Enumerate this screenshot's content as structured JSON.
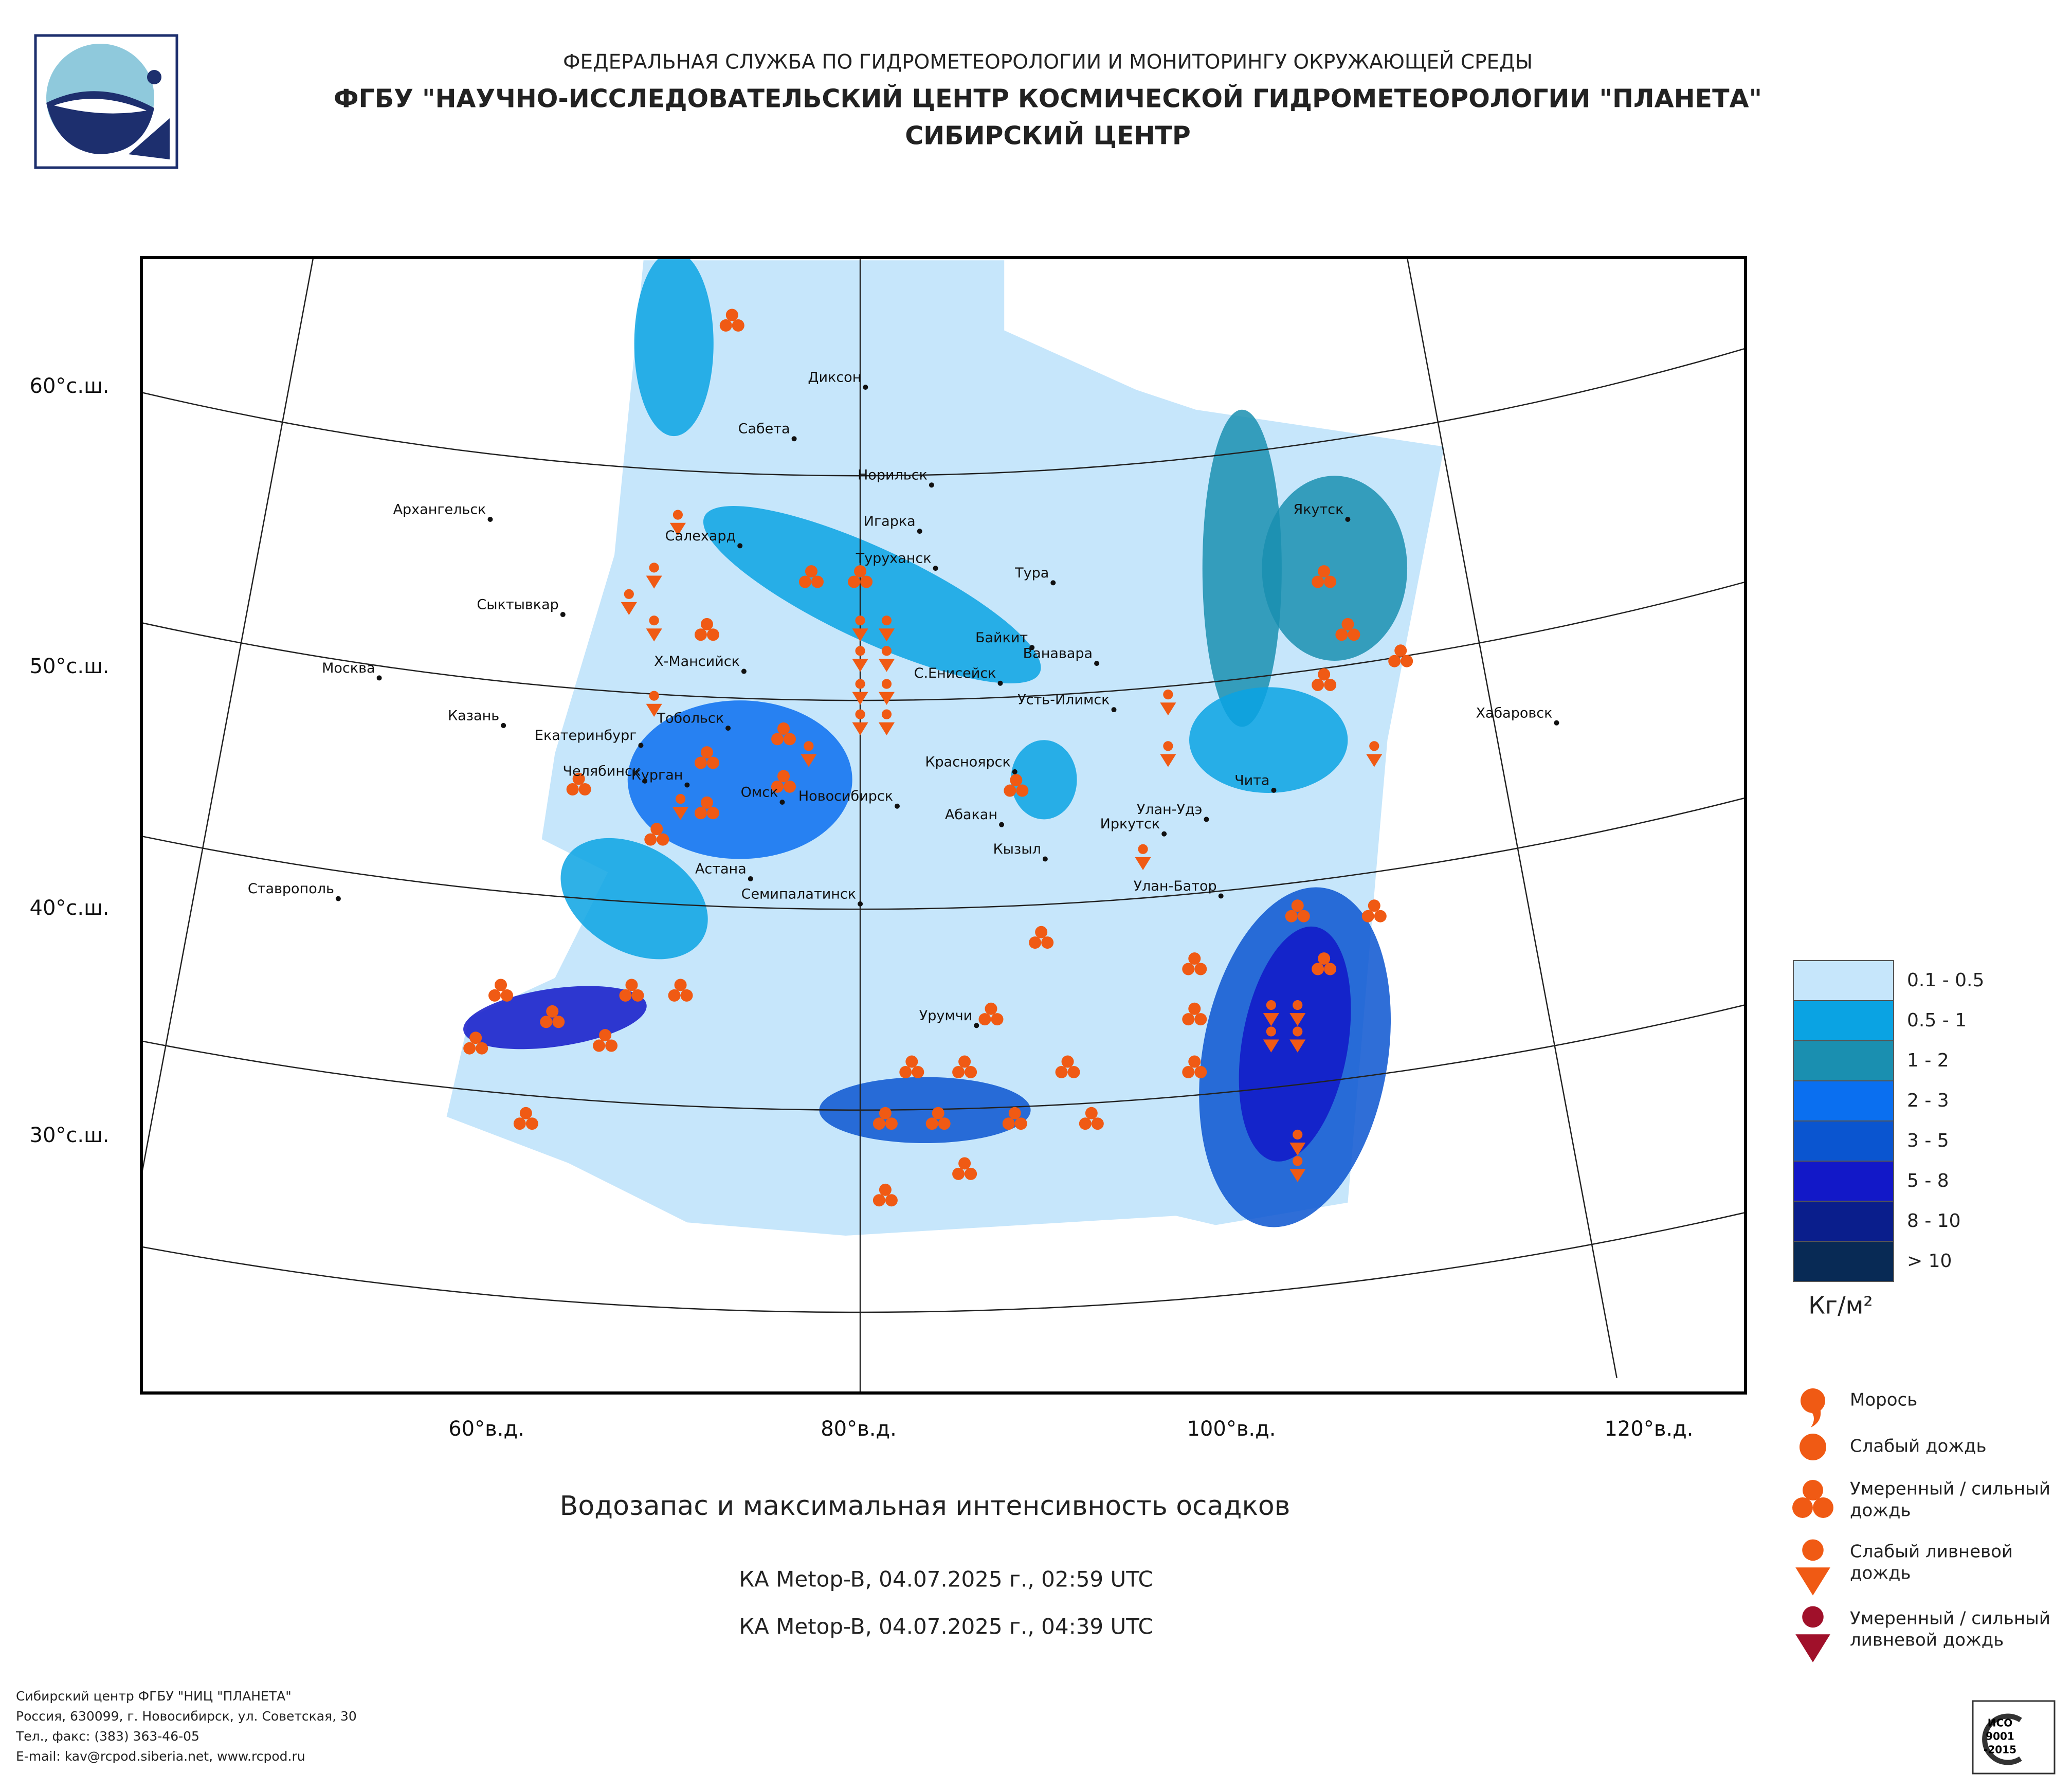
{
  "header": {
    "line1": "ФЕДЕРАЛЬНАЯ СЛУЖБА ПО ГИДРОМЕТЕОРОЛОГИИ И МОНИТОРИНГУ ОКРУЖАЮЩЕЙ СРЕДЫ",
    "line2": "ФГБУ \"НАУЧНО-ИССЛЕДОВАТЕЛЬСКИЙ ЦЕНТР КОСМИЧЕСКОЙ ГИДРОМЕТЕОРОЛОГИИ \"ПЛАНЕТА\"",
    "line3": "СИБИРСКИЙ ЦЕНТР"
  },
  "map": {
    "lat_labels": [
      "60°с.ш.",
      "50°с.ш.",
      "40°с.ш.",
      "30°с.ш."
    ],
    "lon_labels": [
      "60°в.д.",
      "80°в.д.",
      "100°в.д.",
      "120°в.д."
    ],
    "cities": [
      "Диксон",
      "Сабета",
      "Норильск",
      "Игарка",
      "Архангельск",
      "Салехард",
      "Туруханск",
      "Тура",
      "Сыктывкар",
      "Байкит",
      "Ванавара",
      "Якутск",
      "Москва",
      "Х-Мансийск",
      "С.Енисейск",
      "Усть-Илимск",
      "Хабаровск",
      "Казань",
      "Тобольск",
      "Екатеринбург",
      "Челябинск",
      "Курган",
      "Омск",
      "Новосибирск",
      "Красноярск",
      "Чита",
      "Абакан",
      "Улан-Удэ",
      "Иркутск",
      "Кызыл",
      "Астана",
      "Семипалатинск",
      "Улан-Батор",
      "Ставрополь",
      "Урумчи"
    ]
  },
  "legend": {
    "ranges": [
      {
        "label": "0.1 - 0.5",
        "color": "#c6e6fb"
      },
      {
        "label": "0.5 - 1",
        "color": "#0aa3e3"
      },
      {
        "label": "1 - 2",
        "color": "#1a8fb0"
      },
      {
        "label": "2 - 3",
        "color": "#0a6ff0"
      },
      {
        "label": "3 - 5",
        "color": "#0a55d0"
      },
      {
        "label": "5 - 8",
        "color": "#1218c8"
      },
      {
        "label": "8 - 10",
        "color": "#0a1e8c"
      },
      {
        "label": "> 10",
        "color": "#082a55"
      }
    ],
    "unit": "Кг/м²",
    "precipitation": [
      {
        "lines": [
          "Морось"
        ]
      },
      {
        "lines": [
          "Слабый дождь"
        ]
      },
      {
        "lines": [
          "Умеренный / сильный",
          "дождь"
        ]
      },
      {
        "lines": [
          "Слабый ливневой",
          "дождь"
        ]
      },
      {
        "lines": [
          "Умеренный / сильный",
          "ливневой дождь"
        ]
      }
    ]
  },
  "title": "Водозапас и максимальная интенсивность осадков",
  "passes": [
    "КА Metop-B, 04.07.2025 г., 02:59 UTC",
    "КА Metop-B, 04.07.2025 г., 04:39 UTC"
  ],
  "footer": [
    "Сибирский центр ФГБУ \"НИЦ \"ПЛАНЕТА\"",
    "Россия, 630099, г. Новосибирск, ул. Советская, 30",
    "Тел., факс: (383) 363-46-05",
    "E-mail: kav@rcpod.siberia.net, www.rcpod.ru"
  ],
  "iso": [
    "ИСО",
    "9001",
    "-2015"
  ]
}
